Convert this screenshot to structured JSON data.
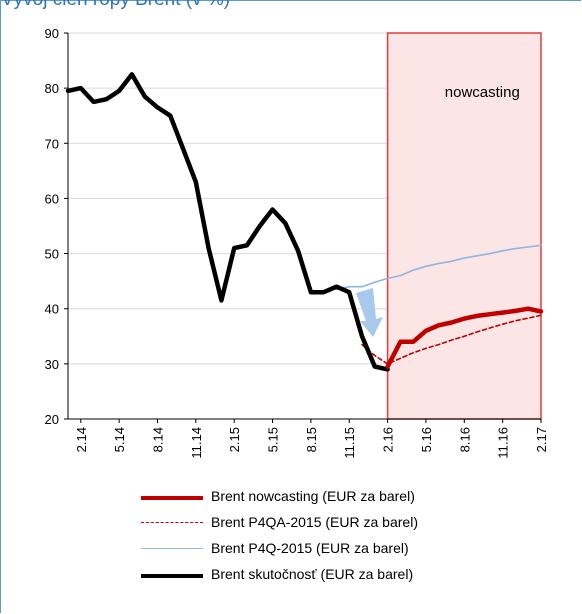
{
  "header": {
    "title": "Vývoj cien ropy Brent (v %)"
  },
  "chart_data": {
    "type": "line",
    "title": "",
    "xlabel": "",
    "ylabel": "",
    "ylim": [
      20,
      90
    ],
    "yticks": [
      20,
      30,
      40,
      50,
      60,
      70,
      80,
      90
    ],
    "x_start": "1.14",
    "x_end": "2.17",
    "x_tick_labels": [
      "2.14",
      "5.14",
      "8.14",
      "11.14",
      "2.15",
      "5.15",
      "8.15",
      "11.15",
      "2.16",
      "5.16",
      "8.16",
      "11.16",
      "2.17"
    ],
    "grid": "horizontal",
    "annotation": {
      "text": "nowcasting",
      "from": "2.16",
      "to": "2.17"
    },
    "series": [
      {
        "name": "Brent nowcasting (EUR za barel)",
        "color": "#c00000",
        "style": "solid-thick",
        "x": [
          "2.16",
          "3.16",
          "4.16",
          "5.16",
          "6.16",
          "7.16",
          "8.16",
          "9.16",
          "10.16",
          "11.16",
          "12.16",
          "1.17",
          "2.17"
        ],
        "values": [
          29.5,
          34,
          34,
          36,
          37,
          37.5,
          38.2,
          38.7,
          39,
          39.3,
          39.6,
          40,
          39.5
        ]
      },
      {
        "name": "Brent P4QA-2015 (EUR za barel)",
        "color": "#c00000",
        "style": "dashed",
        "x": [
          "12.15",
          "1.16",
          "2.16",
          "3.16",
          "4.16",
          "5.16",
          "6.16",
          "7.16",
          "8.16",
          "9.16",
          "10.16",
          "11.16",
          "12.16",
          "1.17",
          "2.17"
        ],
        "values": [
          33.5,
          31.5,
          30,
          31,
          32,
          32.8,
          33.5,
          34.3,
          35,
          35.8,
          36.5,
          37.2,
          37.8,
          38.3,
          38.8
        ]
      },
      {
        "name": "Brent P4Q-2015 (EUR za barel)",
        "color": "#8eb4e3",
        "style": "solid-thin",
        "x": [
          "10.15",
          "11.15",
          "12.15",
          "1.16",
          "2.16",
          "3.16",
          "4.16",
          "5.16",
          "6.16",
          "7.16",
          "8.16",
          "9.16",
          "10.16",
          "11.16",
          "12.16",
          "1.17",
          "2.17"
        ],
        "values": [
          43.5,
          44,
          44,
          44.8,
          45.5,
          46,
          47,
          47.7,
          48.2,
          48.6,
          49.2,
          49.6,
          50,
          50.5,
          50.9,
          51.2,
          51.5
        ]
      },
      {
        "name": "Brent skutočnosť (EUR za barel)",
        "color": "#000000",
        "style": "solid-thick",
        "x": [
          "1.14",
          "2.14",
          "3.14",
          "4.14",
          "5.14",
          "6.14",
          "7.14",
          "8.14",
          "9.14",
          "10.14",
          "11.14",
          "12.14",
          "1.15",
          "2.15",
          "3.15",
          "4.15",
          "5.15",
          "6.15",
          "7.15",
          "8.15",
          "9.15",
          "10.15",
          "11.15",
          "12.15",
          "1.16",
          "2.16"
        ],
        "values": [
          79.5,
          80,
          77.5,
          78,
          79.5,
          82.5,
          78.5,
          76.5,
          75,
          69,
          63,
          51,
          41.5,
          51,
          51.5,
          55,
          58,
          55.5,
          50.5,
          43,
          43,
          44,
          43,
          35,
          29.5,
          29
        ]
      }
    ],
    "legend": {
      "position": "bottom",
      "order": [
        0,
        1,
        2,
        3
      ]
    }
  }
}
